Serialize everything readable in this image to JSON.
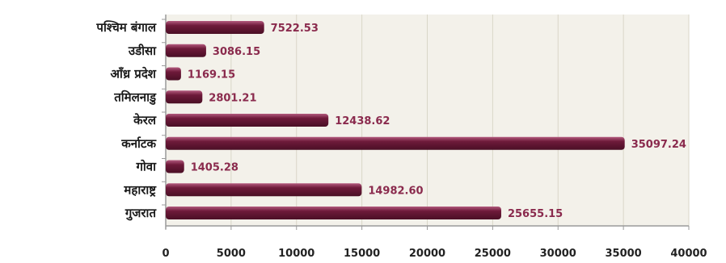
{
  "chart_data": {
    "type": "bar",
    "orientation": "horizontal",
    "categories": [
      "पश्चिम बंगाल",
      "उडीसा",
      "आँध्र प्रदेश",
      "तमिलनाडु",
      "केरल",
      "कर्नाटक",
      "गोवा",
      "महाराष्ट्र",
      "गुजरात"
    ],
    "values": [
      7522.53,
      3086.15,
      1169.15,
      2801.21,
      12438.62,
      35097.24,
      1405.28,
      14982.6,
      25655.15
    ],
    "value_labels": [
      "7522.53",
      "3086.15",
      "1169.15",
      "2801.21",
      "12438.62",
      "35097.24",
      "1405.28",
      "14982.60",
      "25655.15"
    ],
    "xticks": [
      "0",
      "5000",
      "10000",
      "15000",
      "20000",
      "25000",
      "30000",
      "35000",
      "40000"
    ],
    "xlim": [
      0,
      40000
    ],
    "grid": true,
    "title": "",
    "xlabel": "",
    "ylabel": "",
    "colors": {
      "bar": "#6e1a3a",
      "bar_highlight": "#b35a7e",
      "value_label": "#8a2a4d",
      "plot_background": "#f3f1ea",
      "grid": "#d9d6c8"
    }
  }
}
